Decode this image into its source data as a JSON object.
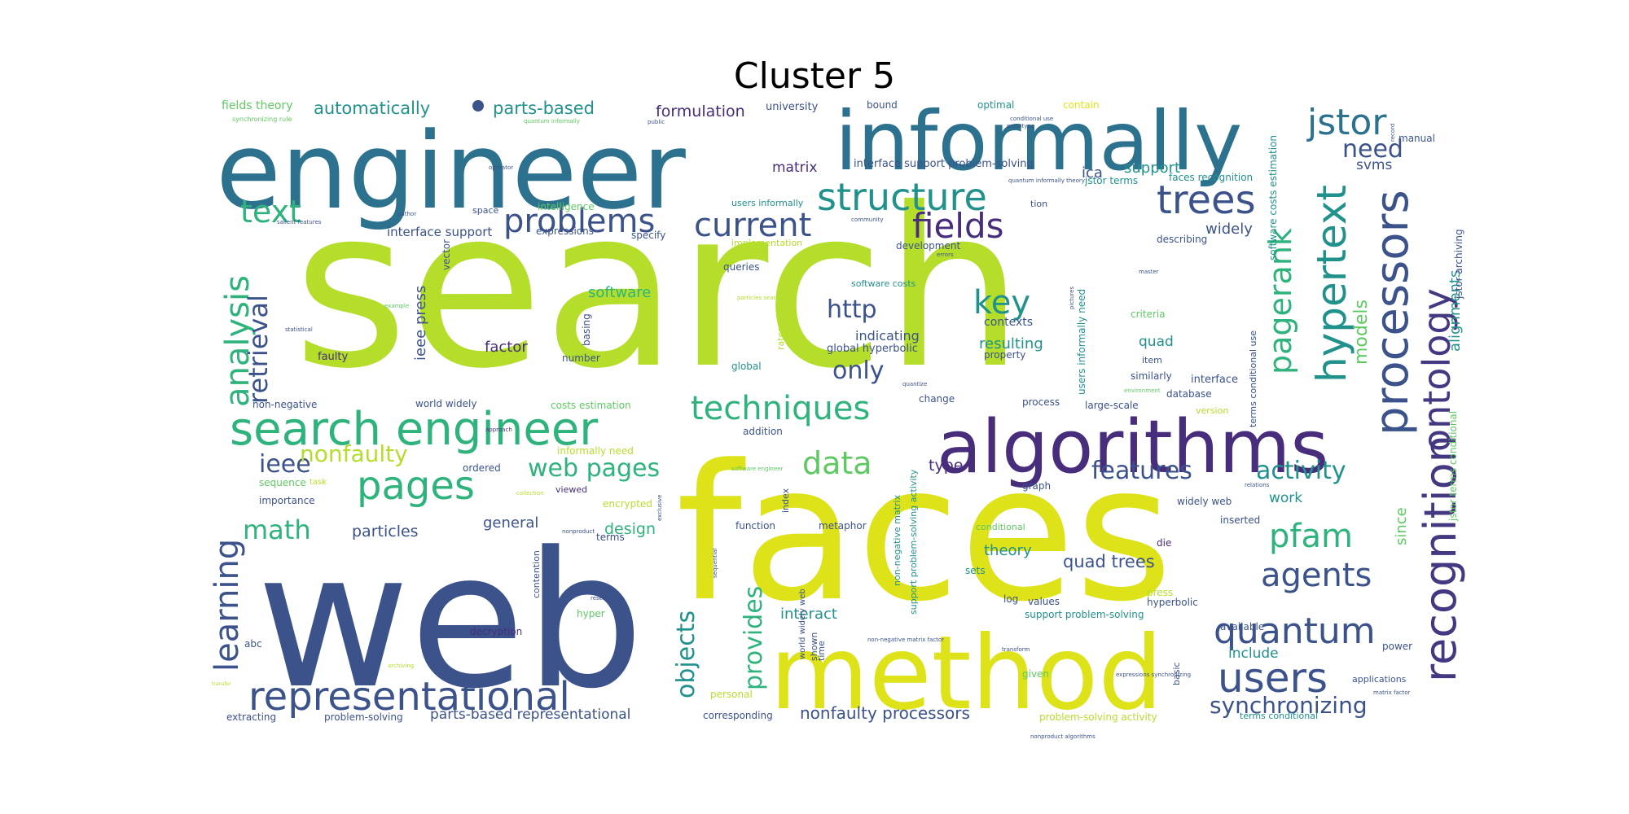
{
  "title": "Cluster 5",
  "palette": {
    "navy": "#3b528b",
    "teal": "#2c728e",
    "green": "#2eb37c",
    "lime": "#b5de2b",
    "yellow": "#dde318",
    "purple": "#472d7b",
    "indigo": "#453781",
    "mint": "#5ec962",
    "cyan": "#21918c"
  },
  "words": [
    {
      "text": "search",
      "color": "lime"
    },
    {
      "text": "web",
      "color": "navy"
    },
    {
      "text": "faces",
      "color": "yellow"
    },
    {
      "text": "engineer",
      "color": "teal"
    },
    {
      "text": "method",
      "color": "yellow"
    },
    {
      "text": "informally",
      "color": "teal"
    },
    {
      "text": "algorithms",
      "color": "purple"
    },
    {
      "text": "search engineer",
      "color": "green"
    },
    {
      "text": "representational",
      "color": "navy"
    },
    {
      "text": "recognition",
      "color": "indigo"
    },
    {
      "text": "processors",
      "color": "navy"
    },
    {
      "text": "hypertext",
      "color": "cyan"
    },
    {
      "text": "ontology",
      "color": "indigo"
    },
    {
      "text": "pagerank",
      "color": "green"
    },
    {
      "text": "structure",
      "color": "cyan"
    },
    {
      "text": "problems",
      "color": "navy"
    },
    {
      "text": "current",
      "color": "navy"
    },
    {
      "text": "fields",
      "color": "purple"
    },
    {
      "text": "trees",
      "color": "navy"
    },
    {
      "text": "jstor",
      "color": "teal"
    },
    {
      "text": "need",
      "color": "navy"
    },
    {
      "text": "text",
      "color": "green"
    },
    {
      "text": "pages",
      "color": "green"
    },
    {
      "text": "analysis",
      "color": "green"
    },
    {
      "text": "learning",
      "color": "navy"
    },
    {
      "text": "retrieval",
      "color": "navy"
    },
    {
      "text": "techniques",
      "color": "green"
    },
    {
      "text": "data",
      "color": "mint"
    },
    {
      "text": "key",
      "color": "cyan"
    },
    {
      "text": "http",
      "color": "navy"
    },
    {
      "text": "only",
      "color": "navy"
    },
    {
      "text": "users",
      "color": "navy"
    },
    {
      "text": "quantum",
      "color": "navy"
    },
    {
      "text": "agents",
      "color": "navy"
    },
    {
      "text": "pfam",
      "color": "green"
    },
    {
      "text": "activity",
      "color": "cyan"
    },
    {
      "text": "features",
      "color": "navy"
    },
    {
      "text": "synchronizing",
      "color": "navy"
    },
    {
      "text": "objects",
      "color": "cyan"
    },
    {
      "text": "provides",
      "color": "green"
    },
    {
      "text": "math",
      "color": "green"
    },
    {
      "text": "ieee",
      "color": "navy"
    },
    {
      "text": "nonfaulty",
      "color": "lime"
    },
    {
      "text": "web pages",
      "color": "green"
    },
    {
      "text": "nonfaulty processors",
      "color": "navy"
    },
    {
      "text": "parts-based representational",
      "color": "navy"
    },
    {
      "text": "quad trees",
      "color": "navy"
    },
    {
      "text": "models",
      "color": "mint"
    },
    {
      "text": "alignments",
      "color": "cyan"
    },
    {
      "text": "automatically",
      "color": "cyan"
    },
    {
      "text": "parts-based",
      "color": "cyan"
    },
    {
      "text": "formulation",
      "color": "purple"
    },
    {
      "text": "matrix",
      "color": "purple"
    },
    {
      "text": "support",
      "color": "cyan"
    },
    {
      "text": "ica",
      "color": "navy"
    },
    {
      "text": "svms",
      "color": "navy"
    },
    {
      "text": "widely",
      "color": "navy"
    },
    {
      "text": "interface support",
      "color": "navy"
    },
    {
      "text": "software",
      "color": "green"
    },
    {
      "text": "factor",
      "color": "purple"
    },
    {
      "text": "ieee press",
      "color": "navy"
    },
    {
      "text": "indicating",
      "color": "navy"
    },
    {
      "text": "resulting",
      "color": "cyan"
    },
    {
      "text": "quad",
      "color": "cyan"
    },
    {
      "text": "contexts",
      "color": "navy"
    },
    {
      "text": "global hyperbolic",
      "color": "navy"
    },
    {
      "text": "particles",
      "color": "navy"
    },
    {
      "text": "general",
      "color": "navy"
    },
    {
      "text": "design",
      "color": "green"
    },
    {
      "text": "type",
      "color": "purple"
    },
    {
      "text": "theory",
      "color": "cyan"
    },
    {
      "text": "interact",
      "color": "cyan"
    },
    {
      "text": "include",
      "color": "cyan"
    },
    {
      "text": "work",
      "color": "cyan"
    },
    {
      "text": "since",
      "color": "mint"
    },
    {
      "text": "interface support problem-solving",
      "color": "navy"
    },
    {
      "text": "users informally",
      "color": "cyan"
    },
    {
      "text": "jstor terms",
      "color": "cyan"
    },
    {
      "text": "faces recognition",
      "color": "cyan"
    },
    {
      "text": "software costs estimation",
      "color": "cyan"
    },
    {
      "text": "jstor archiving",
      "color": "navy"
    },
    {
      "text": "terms conditional use",
      "color": "navy"
    },
    {
      "text": "jstor terms conditional",
      "color": "mint"
    },
    {
      "text": "users informally need",
      "color": "cyan"
    },
    {
      "text": "fields theory",
      "color": "mint"
    },
    {
      "text": "university",
      "color": "navy"
    },
    {
      "text": "bound",
      "color": "navy"
    },
    {
      "text": "optimal",
      "color": "cyan"
    },
    {
      "text": "contain",
      "color": "yellow"
    },
    {
      "text": "manual",
      "color": "navy"
    },
    {
      "text": "space",
      "color": "navy"
    },
    {
      "text": "intelligence",
      "color": "mint"
    },
    {
      "text": "expressions",
      "color": "navy"
    },
    {
      "text": "specify",
      "color": "navy"
    },
    {
      "text": "implementation",
      "color": "lime"
    },
    {
      "text": "development",
      "color": "navy"
    },
    {
      "text": "describing",
      "color": "navy"
    },
    {
      "text": "queries",
      "color": "navy"
    },
    {
      "text": "software costs",
      "color": "cyan"
    },
    {
      "text": "vector",
      "color": "navy"
    },
    {
      "text": "faulty",
      "color": "purple"
    },
    {
      "text": "number",
      "color": "navy"
    },
    {
      "text": "basing",
      "color": "navy"
    },
    {
      "text": "property",
      "color": "navy"
    },
    {
      "text": "global",
      "color": "cyan"
    },
    {
      "text": "criteria",
      "color": "mint"
    },
    {
      "text": "item",
      "color": "navy"
    },
    {
      "text": "similarly",
      "color": "navy"
    },
    {
      "text": "interface",
      "color": "navy"
    },
    {
      "text": "database",
      "color": "navy"
    },
    {
      "text": "version",
      "color": "lime"
    },
    {
      "text": "non-negative",
      "color": "navy"
    },
    {
      "text": "world widely",
      "color": "navy"
    },
    {
      "text": "costs estimation",
      "color": "mint"
    },
    {
      "text": "change",
      "color": "navy"
    },
    {
      "text": "process",
      "color": "navy"
    },
    {
      "text": "large-scale",
      "color": "navy"
    },
    {
      "text": "addition",
      "color": "navy"
    },
    {
      "text": "informally need",
      "color": "lime"
    },
    {
      "text": "ordered",
      "color": "navy"
    },
    {
      "text": "sequence",
      "color": "mint"
    },
    {
      "text": "importance",
      "color": "navy"
    },
    {
      "text": "viewed",
      "color": "purple"
    },
    {
      "text": "encrypted",
      "color": "lime"
    },
    {
      "text": "graph",
      "color": "navy"
    },
    {
      "text": "widely web",
      "color": "navy"
    },
    {
      "text": "inserted",
      "color": "navy"
    },
    {
      "text": "function",
      "color": "navy"
    },
    {
      "text": "metaphor",
      "color": "navy"
    },
    {
      "text": "conditional",
      "color": "mint"
    },
    {
      "text": "terms",
      "color": "navy"
    },
    {
      "text": "die",
      "color": "purple"
    },
    {
      "text": "sets",
      "color": "cyan"
    },
    {
      "text": "contention",
      "color": "navy"
    },
    {
      "text": "log",
      "color": "navy"
    },
    {
      "text": "values",
      "color": "navy"
    },
    {
      "text": "hyperbolic",
      "color": "navy"
    },
    {
      "text": "press",
      "color": "lime"
    },
    {
      "text": "hyper",
      "color": "mint"
    },
    {
      "text": "support problem-solving",
      "color": "cyan"
    },
    {
      "text": "abc",
      "color": "navy"
    },
    {
      "text": "decryption",
      "color": "purple"
    },
    {
      "text": "available",
      "color": "navy"
    },
    {
      "text": "power",
      "color": "navy"
    },
    {
      "text": "applications",
      "color": "navy"
    },
    {
      "text": "given",
      "color": "mint"
    },
    {
      "text": "basic",
      "color": "navy"
    },
    {
      "text": "personal",
      "color": "lime"
    },
    {
      "text": "extracting",
      "color": "navy"
    },
    {
      "text": "problem-solving",
      "color": "navy"
    },
    {
      "text": "corresponding",
      "color": "navy"
    },
    {
      "text": "problem-solving activity",
      "color": "lime"
    },
    {
      "text": "terms conditional",
      "color": "cyan"
    },
    {
      "text": "non-negative matrix",
      "color": "cyan"
    },
    {
      "text": "support problem-solving activity",
      "color": "cyan"
    },
    {
      "text": "index",
      "color": "navy"
    },
    {
      "text": "world widely web",
      "color": "navy"
    },
    {
      "text": "shown",
      "color": "navy"
    },
    {
      "text": "time",
      "color": "navy"
    },
    {
      "text": "rates",
      "color": "lime"
    },
    {
      "text": "tion",
      "color": "navy"
    },
    {
      "text": "task",
      "color": "lime"
    },
    {
      "text": "synchronizing rule",
      "color": "mint"
    },
    {
      "text": "quantum informally",
      "color": "mint"
    },
    {
      "text": "public",
      "color": "navy"
    },
    {
      "text": "operator",
      "color": "navy"
    },
    {
      "text": "author",
      "color": "navy"
    },
    {
      "text": "salient features",
      "color": "navy"
    },
    {
      "text": "community",
      "color": "navy"
    },
    {
      "text": "example",
      "color": "mint"
    },
    {
      "text": "statistical",
      "color": "navy"
    },
    {
      "text": "approach",
      "color": "purple"
    },
    {
      "text": "collection",
      "color": "lime"
    },
    {
      "text": "researchers",
      "color": "navy"
    },
    {
      "text": "archiving",
      "color": "lime"
    },
    {
      "text": "transfer",
      "color": "lime"
    },
    {
      "text": "transform",
      "color": "navy"
    },
    {
      "text": "relations",
      "color": "navy"
    },
    {
      "text": "environment",
      "color": "mint"
    },
    {
      "text": "pictures",
      "color": "navy"
    },
    {
      "text": "matrix factor",
      "color": "navy"
    },
    {
      "text": "non-negative matrix factor",
      "color": "navy"
    },
    {
      "text": "expressions synchronizing",
      "color": "navy"
    },
    {
      "text": "nonproduct algorithms",
      "color": "navy"
    },
    {
      "text": "quantum informally theory",
      "color": "navy"
    },
    {
      "text": "software engineer",
      "color": "mint"
    },
    {
      "text": "particles search",
      "color": "lime"
    },
    {
      "text": "quantize",
      "color": "navy"
    },
    {
      "text": "conditional use",
      "color": "navy"
    },
    {
      "text": "prototype",
      "color": "navy"
    },
    {
      "text": "record",
      "color": "navy"
    },
    {
      "text": "errors",
      "color": "navy"
    },
    {
      "text": "master",
      "color": "navy"
    },
    {
      "text": "nonproduct",
      "color": "navy"
    },
    {
      "text": "exclusive",
      "color": "navy"
    },
    {
      "text": "sequential",
      "color": "navy"
    }
  ]
}
